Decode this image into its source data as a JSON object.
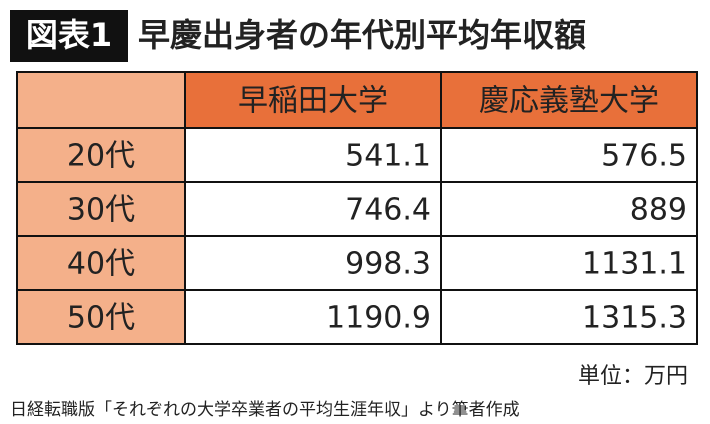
{
  "header": {
    "badge": "図表1",
    "title": "早慶出身者の年代別平均年収額"
  },
  "table": {
    "columns": [
      "早稲田大学",
      "慶応義塾大学"
    ],
    "rows": [
      {
        "label": "20代",
        "values": [
          541.1,
          576.5
        ]
      },
      {
        "label": "30代",
        "values": [
          746.4,
          889
        ]
      },
      {
        "label": "40代",
        "values": [
          998.3,
          1131.1
        ]
      },
      {
        "label": "50代",
        "values": [
          1190.9,
          1315.3
        ]
      }
    ]
  },
  "unit": "単位：万円",
  "source": "日経転職版「それぞれの大学卒業者の平均生涯年収」より筆者作成"
}
